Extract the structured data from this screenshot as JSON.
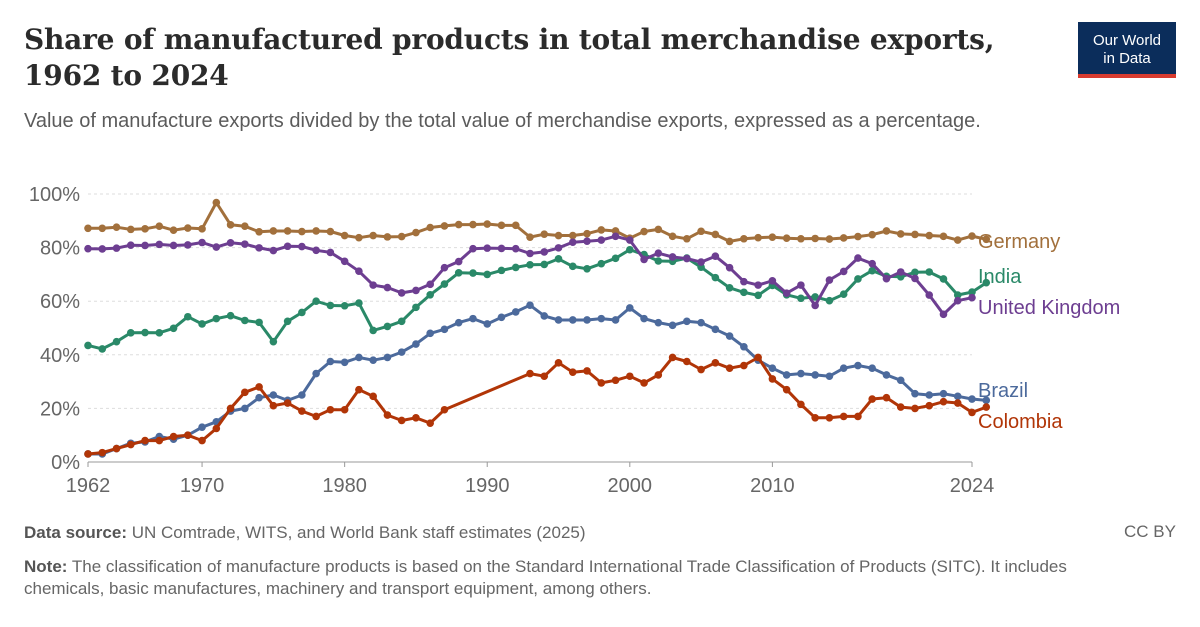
{
  "title_line1": "Share of manufactured products in total merchandise exports,",
  "title_line2": "1962 to 2024",
  "subtitle": "Value of manufacture exports divided by the total value of merchandise exports, expressed as a percentage.",
  "logo": {
    "line1": "Our World",
    "line2": "in Data"
  },
  "footer": {
    "source_label": "Data source:",
    "source_text": "UN Comtrade, WITS, and World Bank staff estimates (2025)",
    "license": "CC BY",
    "note_label": "Note:",
    "note_text": "The classification of manufacture products is based on the Standard International Trade Classification of Products (SITC). It includes chemicals, basic manufactures, machinery and transport equipment, among others."
  },
  "chart_data": {
    "type": "line",
    "xlim": [
      1962,
      2024
    ],
    "ylim": [
      0,
      100
    ],
    "x_ticks": [
      1962,
      1970,
      1980,
      1990,
      2000,
      2010,
      2024
    ],
    "y_ticks": [
      0,
      20,
      40,
      60,
      80,
      100
    ],
    "y_tick_labels": [
      "0%",
      "20%",
      "40%",
      "60%",
      "80%",
      "100%"
    ],
    "grid": "horizontal dashed",
    "legend": "labels at line ends",
    "series": [
      {
        "name": "Germany",
        "color": "#a2703c",
        "x_start": 1962,
        "values": [
          87.2,
          87.2,
          87.6,
          86.8,
          87.0,
          88.0,
          86.5,
          87.3,
          87.0,
          96.8,
          88.5,
          88.0,
          85.9,
          86.2,
          86.2,
          86.0,
          86.2,
          86.0,
          84.5,
          83.7,
          84.5,
          84.0,
          84.1,
          85.6,
          87.5,
          88.1,
          88.6,
          88.6,
          88.8,
          88.3,
          88.3,
          83.9,
          85.0,
          84.5,
          84.5,
          85.2,
          86.6,
          86.2,
          83.5,
          86.0,
          86.8,
          84.2,
          83.3,
          86.1,
          84.9,
          82.3,
          83.3,
          83.7,
          83.9,
          83.5,
          83.3,
          83.4,
          83.2,
          83.6,
          84.1,
          84.8,
          86.2,
          85.1,
          84.9,
          84.5,
          84.2,
          82.8,
          84.3,
          83.1
        ]
      },
      {
        "name": "India",
        "color": "#2a8968",
        "x_start": 1962,
        "values": [
          43.5,
          42.2,
          44.9,
          48.2,
          48.3,
          48.2,
          49.9,
          54.2,
          51.5,
          53.5,
          54.6,
          52.8,
          52.1,
          44.9,
          52.5,
          55.8,
          60.0,
          58.4,
          58.3,
          59.3,
          49.1,
          50.6,
          52.5,
          57.7,
          62.4,
          66.4,
          70.6,
          70.5,
          70.0,
          71.5,
          72.6,
          73.6,
          73.7,
          75.8,
          73.0,
          72.1,
          74.0,
          76.0,
          79.2,
          77.4,
          75.0,
          74.9,
          76.1,
          72.7,
          68.8,
          65.0,
          63.3,
          62.2,
          65.9,
          62.4,
          61.1,
          61.6,
          60.2,
          62.6,
          68.3,
          71.4,
          69.3,
          69.1,
          70.8,
          70.9,
          68.3,
          62.3,
          63.4,
          66.9
        ]
      },
      {
        "name": "United Kingdom",
        "color": "#6d3e91",
        "x_start": 1962,
        "values": [
          79.6,
          79.5,
          79.8,
          80.9,
          80.8,
          81.2,
          80.8,
          81.0,
          81.9,
          80.2,
          81.8,
          81.3,
          79.9,
          78.9,
          80.5,
          80.4,
          79.0,
          78.2,
          74.9,
          71.2,
          66.0,
          65.1,
          63.1,
          64.0,
          66.3,
          72.5,
          74.8,
          79.6,
          79.8,
          79.7,
          79.6,
          77.8,
          78.4,
          79.9,
          82.0,
          82.4,
          82.8,
          84.2,
          82.8,
          75.6,
          77.9,
          76.5,
          75.9,
          74.6,
          76.8,
          72.5,
          67.3,
          66.0,
          67.6,
          63.0,
          66.0,
          58.4,
          67.9,
          71.1,
          76.1,
          74.0,
          68.4,
          70.9,
          68.5,
          62.3,
          55.1,
          60.2,
          61.3,
          null
        ]
      },
      {
        "name": "Brazil",
        "color": "#4c6a9c",
        "x_start": 1962,
        "values": [
          3.0,
          3.0,
          5.0,
          7.0,
          7.5,
          9.5,
          8.5,
          10.0,
          13.0,
          15.0,
          19.0,
          20.0,
          24.0,
          25.0,
          23.0,
          25.0,
          33.0,
          37.5,
          37.2,
          39.0,
          38.0,
          39.0,
          41.0,
          44.0,
          48.0,
          49.5,
          52.0,
          53.5,
          51.5,
          54.0,
          56.0,
          58.5,
          54.5,
          53.0,
          53.0,
          53.0,
          53.5,
          53.0,
          57.5,
          53.5,
          52.0,
          51.0,
          52.5,
          52.0,
          49.5,
          47.0,
          43.0,
          38.0,
          35.0,
          32.5,
          33.0,
          32.5,
          32.0,
          35.0,
          36.0,
          35.0,
          32.5,
          30.5,
          25.5,
          25.0,
          25.5,
          24.5,
          23.5,
          23.0
        ]
      },
      {
        "name": "Colombia",
        "color": "#b13507",
        "x_start": 1962,
        "values": [
          3.0,
          3.5,
          5.0,
          6.5,
          8.0,
          8.0,
          9.5,
          10.0,
          8.0,
          12.5,
          20.0,
          26.0,
          28.0,
          21.0,
          22.0,
          19.0,
          17.0,
          19.5,
          19.5,
          27.0,
          24.5,
          17.5,
          15.5,
          16.5,
          14.5,
          19.5,
          null,
          null,
          null,
          null,
          null,
          33.0,
          32.0,
          37.0,
          33.5,
          34.0,
          29.5,
          30.5,
          32.0,
          29.5,
          32.5,
          39.0,
          37.5,
          34.5,
          37.0,
          35.0,
          36.0,
          39.0,
          31.0,
          27.0,
          21.5,
          16.5,
          16.5,
          17.0,
          17.0,
          23.5,
          24.0,
          20.5,
          20.0,
          21.0,
          22.5,
          22.0,
          18.5,
          20.5
        ]
      }
    ]
  }
}
